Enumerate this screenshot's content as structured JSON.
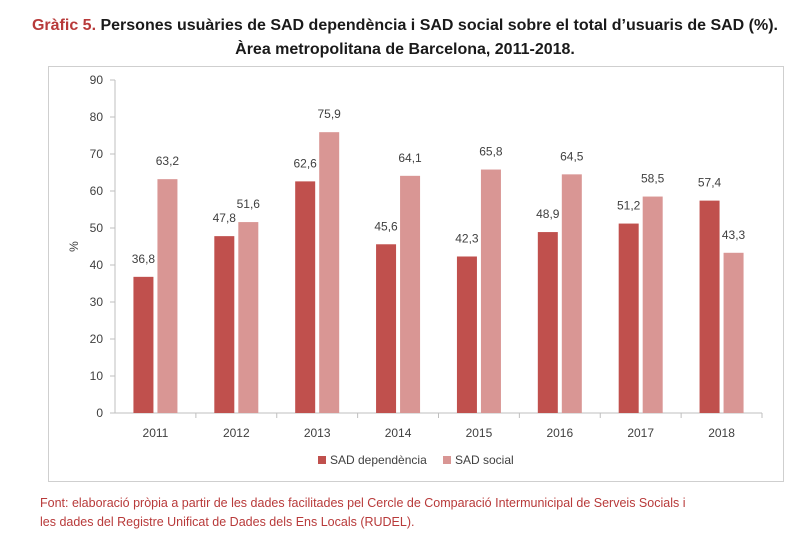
{
  "title": {
    "label": "Gràfic 5.",
    "line1": "Persones usuàries de SAD dependència i SAD social sobre el total d’usuaris de SAD (%).",
    "line2": "Àrea metropolitana de Barcelona, 2011-2018."
  },
  "source": {
    "line1": "Font: elaboració pròpia a partir de les dades facilitades pel Cercle de Comparació Intermunicipal de Serveis Socials i",
    "line2": "les dades del Registre Unificat de Dades dels Ens Locals (RUDEL)."
  },
  "colors": {
    "dependencia": "#c0504d",
    "social": "#d99694",
    "axis": "#bfbfbf",
    "text": "#404040"
  },
  "chart_data": {
    "type": "bar",
    "categories": [
      "2011",
      "2012",
      "2013",
      "2014",
      "2015",
      "2016",
      "2017",
      "2018"
    ],
    "series": [
      {
        "name": "SAD dependència",
        "values": [
          36.8,
          47.8,
          62.6,
          45.6,
          42.3,
          48.9,
          51.2,
          57.4
        ]
      },
      {
        "name": "SAD social",
        "values": [
          63.2,
          51.6,
          75.9,
          64.1,
          65.8,
          64.5,
          58.5,
          43.3
        ]
      }
    ],
    "value_labels": {
      "dependencia": [
        "36,8",
        "47,8",
        "62,6",
        "45,6",
        "42,3",
        "48,9",
        "51,2",
        "57,4"
      ],
      "social": [
        "63,2",
        "51,6",
        "75,9",
        "64,1",
        "65,8",
        "64,5",
        "58,5",
        "43,3"
      ]
    },
    "y_ticks": [
      "0",
      "10",
      "20",
      "30",
      "40",
      "50",
      "60",
      "70",
      "80",
      "90"
    ],
    "ylabel": "%",
    "xlabel": "",
    "ylim": [
      0,
      90
    ],
    "grid": false,
    "legend": "bottom"
  }
}
